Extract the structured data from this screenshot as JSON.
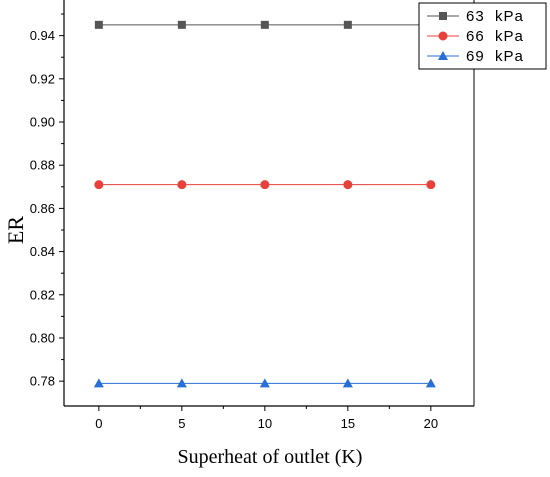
{
  "chart_data": {
    "type": "line",
    "title": "",
    "xlabel": "Superheat of outlet (K)",
    "ylabel": "ER",
    "x": [
      0,
      5,
      10,
      15,
      20
    ],
    "x_ticks": [
      0,
      5,
      10,
      15,
      20
    ],
    "y_ticks": [
      0.78,
      0.8,
      0.82,
      0.84,
      0.86,
      0.88,
      0.9,
      0.92,
      0.94
    ],
    "xlim": [
      -2.1,
      22.6
    ],
    "ylim": [
      0.7685,
      0.9565
    ],
    "grid": false,
    "legend_position": "top-right",
    "series": [
      {
        "name": "63  kPa",
        "values": [
          0.945,
          0.945,
          0.945,
          0.945,
          0.945
        ],
        "color": "#555555",
        "marker": "square"
      },
      {
        "name": "66  kPa",
        "values": [
          0.871,
          0.871,
          0.871,
          0.871,
          0.871
        ],
        "color": "#e8413c",
        "marker": "circle"
      },
      {
        "name": "69  kPa",
        "values": [
          0.779,
          0.779,
          0.779,
          0.779,
          0.779
        ],
        "color": "#2a6fd6",
        "marker": "triangle"
      }
    ]
  }
}
